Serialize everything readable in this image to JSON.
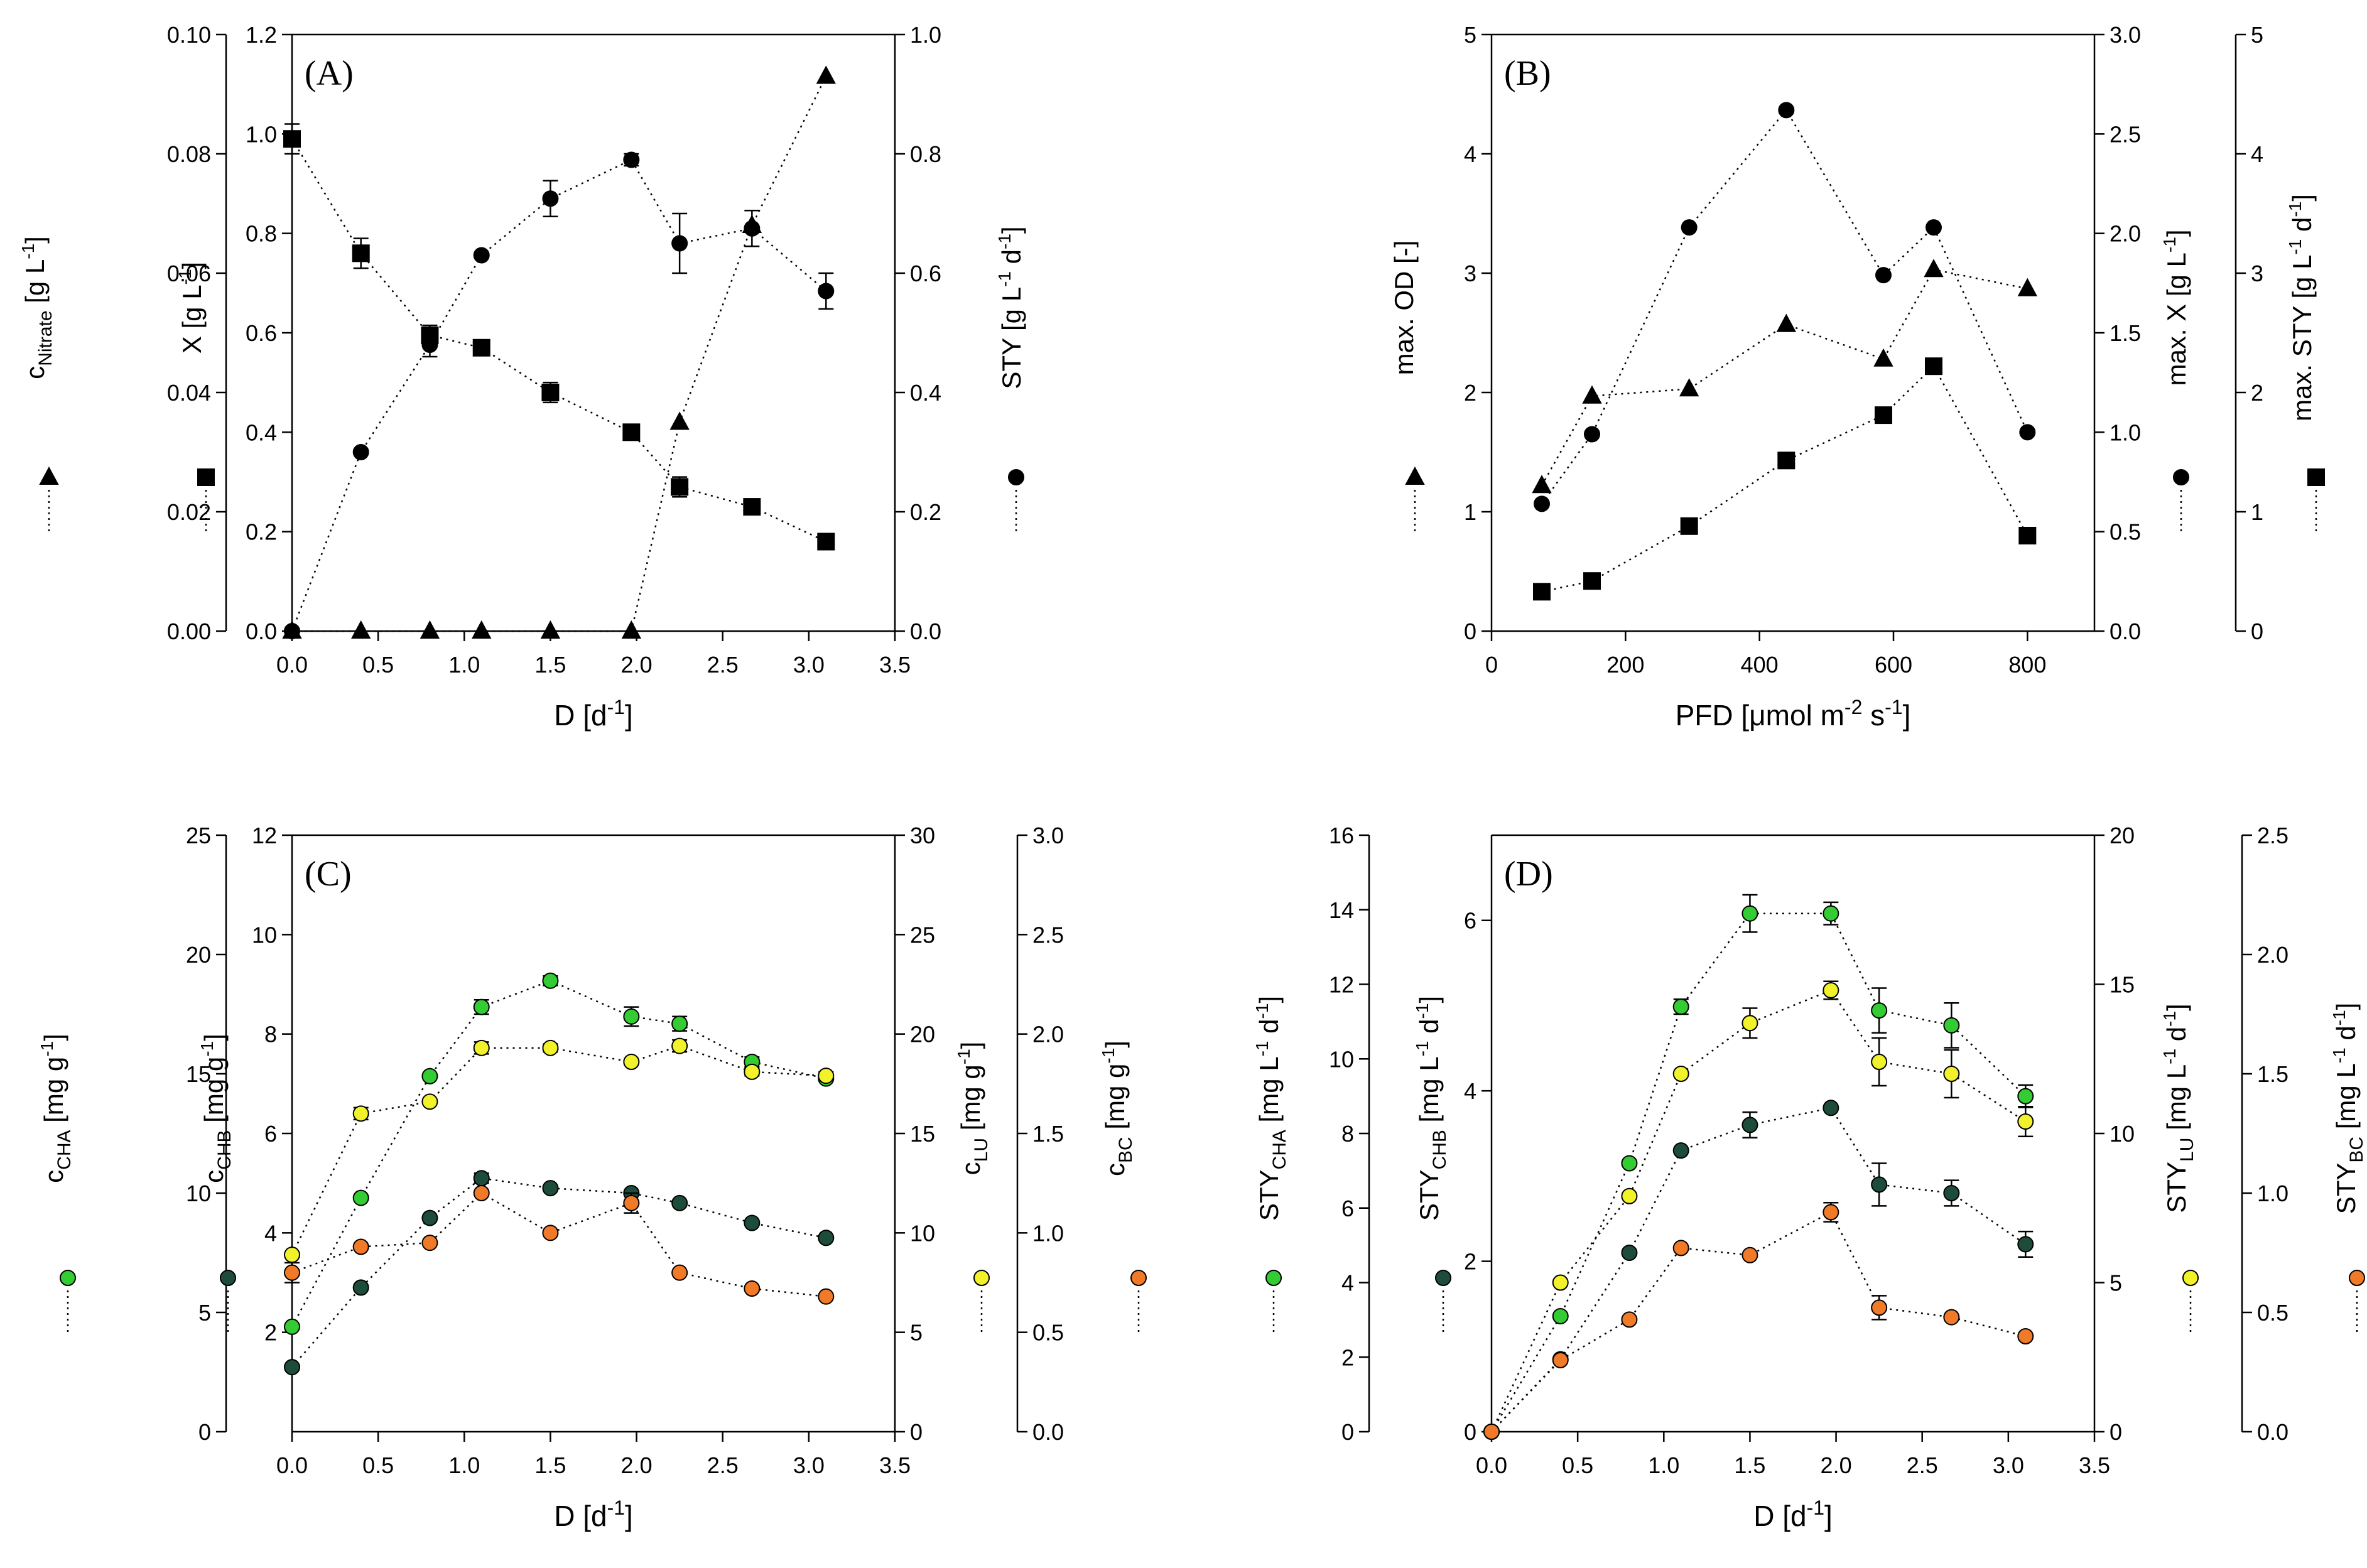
{
  "chart_data": [
    {
      "panel": "(A)",
      "type": "scatter",
      "x_axis": {
        "label": "D [d",
        "sup": "-1",
        "suffix": "]",
        "range": [
          0,
          3.5
        ],
        "ticks": [
          "0.0",
          "0.5",
          "1.0",
          "1.5",
          "2.0",
          "2.5",
          "3.0",
          "3.5"
        ]
      },
      "axes": [
        {
          "id": "nitrate",
          "label": "c",
          "sub": "Nitrate",
          "unit": " [g L",
          "unit_sup": "-1",
          "unit_end": "]",
          "range": [
            0,
            0.1
          ],
          "ticks": [
            "0.00",
            "0.02",
            "0.04",
            "0.06",
            "0.08",
            "0.10"
          ],
          "marker": "triangle",
          "color": "#000000"
        },
        {
          "id": "biomass",
          "label": "X [g L",
          "sup": "-1",
          "suffix": "]",
          "range": [
            0,
            1.2
          ],
          "ticks": [
            "0.0",
            "0.2",
            "0.4",
            "0.6",
            "0.8",
            "1.0",
            "1.2"
          ],
          "marker": "square",
          "color": "#000000"
        },
        {
          "id": "sty",
          "label": "STY [g L",
          "sup": "-1",
          "mid": " d",
          "sup2": "-1",
          "suffix": "]",
          "range": [
            0,
            1.0
          ],
          "ticks": [
            "0.0",
            "0.2",
            "0.4",
            "0.6",
            "0.8",
            "1.0"
          ],
          "marker": "circle",
          "color": "#000000"
        }
      ],
      "series": [
        {
          "name": "c Nitrate",
          "axis": "nitrate",
          "marker": "triangle",
          "color": "#000000",
          "x": [
            0.0,
            0.4,
            0.8,
            1.1,
            1.5,
            1.97,
            2.25,
            2.67,
            3.1
          ],
          "y": [
            0.0,
            0.0,
            0.0,
            0.0,
            0.0,
            0.0,
            0.035,
            0.068,
            0.093
          ],
          "err": [
            0,
            0,
            0,
            0,
            0,
            0,
            0,
            0,
            0
          ]
        },
        {
          "name": "X",
          "axis": "biomass",
          "marker": "square",
          "color": "#000000",
          "x": [
            0.0,
            0.4,
            0.8,
            1.1,
            1.5,
            1.97,
            2.25,
            2.67,
            3.1
          ],
          "y": [
            0.99,
            0.76,
            0.595,
            0.57,
            0.48,
            0.4,
            0.29,
            0.25,
            0.18
          ],
          "err": [
            0.03,
            0.03,
            0.02,
            0.01,
            0.02,
            0.01,
            0.02,
            0.01,
            0.01
          ]
        },
        {
          "name": "STY",
          "axis": "sty",
          "marker": "circle",
          "color": "#000000",
          "x": [
            0.0,
            0.4,
            0.8,
            1.1,
            1.5,
            1.97,
            2.25,
            2.67,
            3.1
          ],
          "y": [
            0.0,
            0.3,
            0.48,
            0.63,
            0.725,
            0.79,
            0.65,
            0.675,
            0.57
          ],
          "err": [
            0,
            0,
            0.02,
            0,
            0.03,
            0.01,
            0.05,
            0.03,
            0.03
          ]
        }
      ]
    },
    {
      "panel": "(B)",
      "type": "scatter",
      "x_axis": {
        "label": "PFD [μmol m",
        "sup": "-2",
        "mid": " s",
        "sup2": "-1",
        "suffix": "]",
        "range": [
          0,
          900
        ],
        "ticks": [
          "0",
          "200",
          "400",
          "600",
          "800"
        ]
      },
      "axes": [
        {
          "id": "od",
          "label": "max. OD [-]",
          "range": [
            0,
            5
          ],
          "ticks": [
            "0",
            "1",
            "2",
            "3",
            "4",
            "5"
          ],
          "marker": "triangle",
          "color": "#000000"
        },
        {
          "id": "maxx",
          "label": "max. X [g L",
          "sup": "-1",
          "suffix": "]",
          "range": [
            0,
            3
          ],
          "ticks": [
            "0.0",
            "0.5",
            "1.0",
            "1.5",
            "2.0",
            "2.5",
            "3.0"
          ],
          "marker": "circle",
          "color": "#000000"
        },
        {
          "id": "maxsty",
          "label": "max. STY [g L",
          "sup": "-1",
          "mid": " d",
          "sup2": "-1",
          "suffix": "]",
          "range": [
            0,
            5
          ],
          "ticks": [
            "0",
            "1",
            "2",
            "3",
            "4",
            "5"
          ],
          "marker": "square",
          "color": "#000000"
        }
      ],
      "series": [
        {
          "name": "max. OD",
          "axis": "od",
          "marker": "triangle",
          "color": "#000000",
          "x": [
            75,
            150,
            295,
            440,
            585,
            660,
            800
          ],
          "y": [
            1.22,
            1.97,
            2.03,
            2.57,
            2.28,
            3.03,
            2.87
          ],
          "err": [
            0,
            0,
            0,
            0,
            0,
            0,
            0
          ]
        },
        {
          "name": "max. X",
          "axis": "maxx",
          "marker": "circle",
          "color": "#000000",
          "x": [
            75,
            150,
            295,
            440,
            585,
            660,
            800
          ],
          "y": [
            0.64,
            0.99,
            2.03,
            2.62,
            1.79,
            2.03,
            1.0
          ],
          "err": [
            0,
            0,
            0,
            0,
            0,
            0,
            0
          ]
        },
        {
          "name": "max. STY",
          "axis": "maxsty",
          "marker": "square",
          "color": "#000000",
          "x": [
            75,
            150,
            295,
            440,
            585,
            660,
            800
          ],
          "y": [
            0.33,
            0.42,
            0.88,
            1.43,
            1.81,
            2.22,
            0.8
          ],
          "err": [
            0,
            0,
            0,
            0,
            0,
            0,
            0
          ]
        }
      ]
    },
    {
      "panel": "(C)",
      "type": "scatter",
      "x_axis": {
        "label": "D [d",
        "sup": "-1",
        "suffix": "]",
        "range": [
          0,
          3.5
        ],
        "ticks": [
          "0.0",
          "0.5",
          "1.0",
          "1.5",
          "2.0",
          "2.5",
          "3.0",
          "3.5"
        ]
      },
      "axes": [
        {
          "id": "cha",
          "label": "c",
          "sub": "CHA",
          "unit": " [mg g",
          "unit_sup": "-1",
          "unit_end": "]",
          "range": [
            0,
            25
          ],
          "ticks": [
            "0",
            "5",
            "10",
            "15",
            "20",
            "25"
          ],
          "marker": "circle",
          "color": "#33cc33"
        },
        {
          "id": "chb",
          "label": "c",
          "sub": "CHB",
          "unit": " [mg g",
          "unit_sup": "-1",
          "unit_end": "]",
          "range": [
            0,
            12
          ],
          "ticks": [
            "2",
            "4",
            "6",
            "8",
            "10",
            "12"
          ],
          "marker": "circle",
          "color": "#1d4d3a"
        },
        {
          "id": "lu",
          "label": "c",
          "sub": "LU",
          "unit": " [mg g",
          "unit_sup": "-1",
          "unit_end": "]",
          "range": [
            0,
            30
          ],
          "ticks": [
            "0",
            "5",
            "10",
            "15",
            "20",
            "25",
            "30"
          ],
          "marker": "circle",
          "color": "#f2f22a"
        },
        {
          "id": "bc",
          "label": "c",
          "sub": "BC",
          "unit": " [mg g",
          "unit_sup": "-1",
          "unit_end": "]",
          "range": [
            0,
            3
          ],
          "ticks": [
            "0.0",
            "0.5",
            "1.0",
            "1.5",
            "2.0",
            "2.5",
            "3.0"
          ],
          "marker": "circle",
          "color": "#f07a28"
        }
      ],
      "series": [
        {
          "name": "c CHA",
          "axis": "cha",
          "marker": "circle",
          "color": "#33cc33",
          "x": [
            0.0,
            0.4,
            0.8,
            1.1,
            1.5,
            1.97,
            2.25,
            2.67,
            3.1
          ],
          "y": [
            4.4,
            9.8,
            14.9,
            17.8,
            18.9,
            17.4,
            17.1,
            15.5,
            14.8
          ],
          "err": [
            0,
            0,
            0,
            0.3,
            0.2,
            0.4,
            0.3,
            0.2,
            0
          ]
        },
        {
          "name": "c CHB",
          "axis": "chb",
          "marker": "circle",
          "color": "#1d4d3a",
          "x": [
            0.0,
            0.4,
            0.8,
            1.1,
            1.5,
            1.97,
            2.25,
            2.67,
            3.1
          ],
          "y": [
            1.3,
            2.9,
            4.3,
            5.1,
            4.9,
            4.8,
            4.6,
            4.2,
            3.9
          ],
          "err": [
            0,
            0,
            0,
            0.1,
            0,
            0,
            0,
            0,
            0
          ]
        },
        {
          "name": "c LU",
          "axis": "lu",
          "marker": "circle",
          "color": "#f2f22a",
          "x": [
            0.0,
            0.4,
            0.8,
            1.1,
            1.5,
            1.97,
            2.25,
            2.67,
            3.1
          ],
          "y": [
            8.9,
            16.0,
            16.6,
            19.3,
            19.3,
            18.6,
            19.4,
            18.1,
            17.9
          ],
          "err": [
            0,
            0.3,
            0,
            0.3,
            0.2,
            0,
            0.3,
            0.2,
            0.2
          ]
        },
        {
          "name": "c BC",
          "axis": "bc",
          "marker": "circle",
          "color": "#f07a28",
          "x": [
            0.0,
            0.4,
            0.8,
            1.1,
            1.5,
            1.97,
            2.25,
            2.67,
            3.1
          ],
          "y": [
            0.8,
            0.93,
            0.95,
            1.2,
            1.0,
            1.15,
            0.8,
            0.72,
            0.68
          ],
          "err": [
            0.05,
            0,
            0,
            0,
            0,
            0.05,
            0,
            0,
            0
          ]
        }
      ]
    },
    {
      "panel": "(D)",
      "type": "scatter",
      "x_axis": {
        "label": "D [d",
        "sup": "-1",
        "suffix": "]",
        "range": [
          0,
          3.5
        ],
        "ticks": [
          "0.0",
          "0.5",
          "1.0",
          "1.5",
          "2.0",
          "2.5",
          "3.0",
          "3.5"
        ]
      },
      "axes": [
        {
          "id": "stycha",
          "label": "STY",
          "sub": "CHA",
          "unit": " [mg L",
          "unit_sup": "-1",
          "unit_mid": " d",
          "unit_sup2": "-1",
          "unit_end": "]",
          "range": [
            0,
            16
          ],
          "ticks": [
            "0",
            "2",
            "4",
            "6",
            "8",
            "10",
            "12",
            "14",
            "16"
          ],
          "marker": "circle",
          "color": "#33cc33"
        },
        {
          "id": "stychb",
          "label": "STY",
          "sub": "CHB",
          "unit": " [mg L",
          "unit_sup": "-1",
          "unit_mid": " d",
          "unit_sup2": "-1",
          "unit_end": "]",
          "range": [
            0,
            7
          ],
          "ticks": [
            "0",
            "2",
            "4",
            "6"
          ],
          "marker": "circle",
          "color": "#1d4d3a"
        },
        {
          "id": "stylu",
          "label": "STY",
          "sub": "LU",
          "unit": " [mg L",
          "unit_sup": "-1",
          "unit_mid": " d",
          "unit_sup2": "-1",
          "unit_end": "]",
          "range": [
            0,
            20
          ],
          "ticks": [
            "0",
            "5",
            "10",
            "15",
            "20"
          ],
          "marker": "circle",
          "color": "#f2f22a"
        },
        {
          "id": "stybc",
          "label": "STY",
          "sub": "BC",
          "unit": " [mg L",
          "unit_sup": "-1",
          "unit_mid": " d",
          "unit_sup2": "-1",
          "unit_end": "]",
          "range": [
            0,
            2.5
          ],
          "ticks": [
            "0.0",
            "0.5",
            "1.0",
            "1.5",
            "2.0",
            "2.5"
          ],
          "marker": "circle",
          "color": "#f07a28"
        }
      ],
      "series": [
        {
          "name": "STY CHA",
          "axis": "stycha",
          "marker": "circle",
          "color": "#33cc33",
          "x": [
            0.0,
            0.4,
            0.8,
            1.1,
            1.5,
            1.97,
            2.25,
            2.67,
            3.1
          ],
          "y": [
            0,
            3.1,
            7.2,
            11.4,
            13.9,
            13.9,
            11.3,
            10.9,
            9.0
          ],
          "err": [
            0,
            0,
            0,
            0.2,
            0.5,
            0.3,
            0.6,
            0.6,
            0.3
          ]
        },
        {
          "name": "STY CHB",
          "axis": "stychb",
          "marker": "circle",
          "color": "#1d4d3a",
          "x": [
            0.0,
            0.4,
            0.8,
            1.1,
            1.5,
            1.97,
            2.25,
            2.67,
            3.1
          ],
          "y": [
            0,
            0.85,
            2.1,
            3.3,
            3.6,
            3.8,
            2.9,
            2.8,
            2.2
          ],
          "err": [
            0,
            0,
            0,
            0,
            0.15,
            0,
            0.25,
            0.15,
            0.15
          ]
        },
        {
          "name": "STY LU",
          "axis": "stylu",
          "marker": "circle",
          "color": "#f2f22a",
          "x": [
            0.0,
            0.4,
            0.8,
            1.1,
            1.5,
            1.97,
            2.25,
            2.67,
            3.1
          ],
          "y": [
            0,
            5.0,
            7.9,
            12.0,
            13.7,
            14.8,
            12.4,
            12.0,
            10.4
          ],
          "err": [
            0,
            0,
            0,
            0,
            0.5,
            0.3,
            0.8,
            0.8,
            0.5
          ]
        },
        {
          "name": "STY BC",
          "axis": "stybc",
          "marker": "circle",
          "color": "#f07a28",
          "x": [
            0.0,
            0.4,
            0.8,
            1.1,
            1.5,
            1.97,
            2.25,
            2.67,
            3.1
          ],
          "y": [
            0,
            0.3,
            0.47,
            0.77,
            0.74,
            0.92,
            0.52,
            0.48,
            0.4
          ],
          "err": [
            0,
            0,
            0,
            0,
            0,
            0.04,
            0.05,
            0,
            0
          ]
        }
      ]
    }
  ]
}
